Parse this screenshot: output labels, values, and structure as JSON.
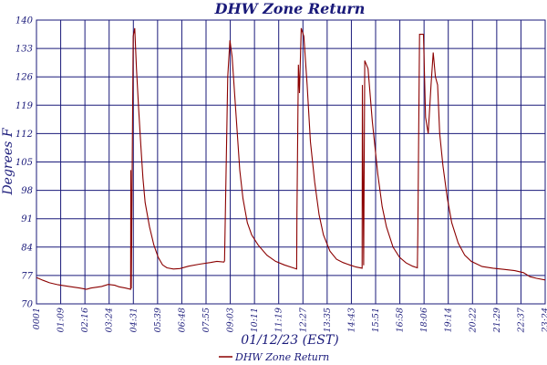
{
  "chart_data": {
    "type": "line",
    "title": "DHW Zone Return",
    "xlabel": "01/12/23 (EST)",
    "ylabel": "Degrees F",
    "ylim": [
      70,
      140
    ],
    "yticks": [
      "70",
      "77",
      "84",
      "91",
      "98",
      "105",
      "112",
      "119",
      "126",
      "133",
      "140"
    ],
    "xticks": [
      "0001",
      "01:09",
      "02:16",
      "03:24",
      "04:31",
      "05:39",
      "06:48",
      "07:55",
      "09:03",
      "10:11",
      "11:19",
      "12:27",
      "13:35",
      "14:43",
      "15:51",
      "16:58",
      "18:06",
      "19:14",
      "20:22",
      "21:29",
      "22:37",
      "23:24"
    ],
    "grid": true,
    "legend": {
      "position": "bottom-center"
    },
    "series": [
      {
        "name": "DHW Zone Return",
        "color": "#8b0000",
        "points": [
          [
            0.0,
            76.5
          ],
          [
            0.3,
            75.8
          ],
          [
            0.6,
            75.2
          ],
          [
            1.0,
            74.7
          ],
          [
            1.5,
            74.3
          ],
          [
            2.0,
            73.9
          ],
          [
            2.3,
            73.6
          ],
          [
            2.5,
            73.9
          ],
          [
            3.0,
            74.3
          ],
          [
            3.3,
            74.8
          ],
          [
            3.6,
            74.6
          ],
          [
            3.8,
            74.2
          ],
          [
            4.1,
            73.9
          ],
          [
            4.33,
            73.6
          ],
          [
            4.34,
            103
          ],
          [
            4.36,
            73.8
          ],
          [
            4.45,
            136
          ],
          [
            4.52,
            138
          ],
          [
            4.6,
            128
          ],
          [
            4.7,
            118
          ],
          [
            4.8,
            109
          ],
          [
            4.9,
            101
          ],
          [
            5.0,
            95
          ],
          [
            5.2,
            89
          ],
          [
            5.4,
            84.5
          ],
          [
            5.6,
            81.5
          ],
          [
            5.8,
            79.6
          ],
          [
            6.0,
            78.9
          ],
          [
            6.3,
            78.6
          ],
          [
            6.6,
            78.7
          ],
          [
            7.0,
            79.3
          ],
          [
            7.5,
            79.8
          ],
          [
            8.0,
            80.2
          ],
          [
            8.3,
            80.5
          ],
          [
            8.62,
            80.3
          ],
          [
            8.65,
            80.6
          ],
          [
            8.8,
            126
          ],
          [
            8.9,
            135
          ],
          [
            9.0,
            131
          ],
          [
            9.2,
            115
          ],
          [
            9.35,
            103
          ],
          [
            9.5,
            96
          ],
          [
            9.7,
            90
          ],
          [
            9.9,
            87
          ],
          [
            10.2,
            84.5
          ],
          [
            10.6,
            82
          ],
          [
            11.0,
            80.5
          ],
          [
            11.4,
            79.6
          ],
          [
            11.8,
            78.9
          ],
          [
            11.97,
            78.6
          ],
          [
            11.98,
            92
          ],
          [
            12.05,
            129
          ],
          [
            12.1,
            122
          ],
          [
            12.18,
            138
          ],
          [
            12.3,
            136
          ],
          [
            12.45,
            124
          ],
          [
            12.6,
            110
          ],
          [
            12.8,
            100
          ],
          [
            13.0,
            92
          ],
          [
            13.2,
            87
          ],
          [
            13.5,
            83
          ],
          [
            13.8,
            81
          ],
          [
            14.1,
            80.2
          ],
          [
            14.4,
            79.6
          ],
          [
            14.7,
            79.1
          ],
          [
            14.98,
            78.8
          ],
          [
            14.99,
            124
          ],
          [
            15.05,
            79.5
          ],
          [
            15.1,
            130
          ],
          [
            15.25,
            128
          ],
          [
            15.45,
            115
          ],
          [
            15.7,
            102
          ],
          [
            15.9,
            94
          ],
          [
            16.1,
            89
          ],
          [
            16.4,
            84
          ],
          [
            16.7,
            81.5
          ],
          [
            17.0,
            80.1
          ],
          [
            17.3,
            79.3
          ],
          [
            17.52,
            78.9
          ],
          [
            17.54,
            87
          ],
          [
            17.62,
            136.5
          ],
          [
            17.8,
            136.5
          ],
          [
            17.9,
            116
          ],
          [
            18.02,
            112
          ],
          [
            18.15,
            124
          ],
          [
            18.25,
            132
          ],
          [
            18.35,
            126
          ],
          [
            18.45,
            124
          ],
          [
            18.55,
            112
          ],
          [
            18.7,
            104
          ],
          [
            18.9,
            96
          ],
          [
            19.1,
            90
          ],
          [
            19.4,
            85
          ],
          [
            19.7,
            82
          ],
          [
            20.0,
            80.5
          ],
          [
            20.5,
            79.2
          ],
          [
            21.0,
            78.8
          ],
          [
            21.5,
            78.5
          ],
          [
            22.0,
            78.2
          ],
          [
            22.4,
            77.7
          ],
          [
            22.7,
            76.7
          ],
          [
            23.0,
            76.3
          ],
          [
            23.4,
            75.9
          ]
        ]
      }
    ]
  }
}
